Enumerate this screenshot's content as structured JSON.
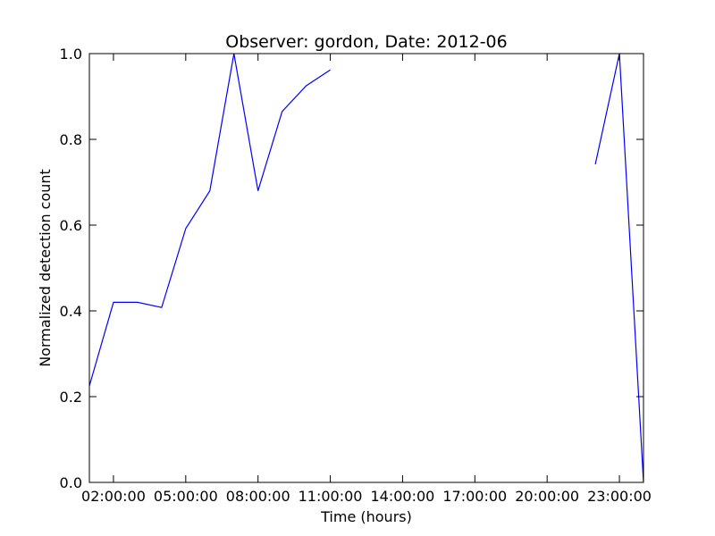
{
  "chart_data": {
    "type": "line",
    "title": "Observer: gordon, Date: 2012-06",
    "xlabel": "Time (hours)",
    "ylabel": "Normalized detection count",
    "xlim": [
      1,
      24
    ],
    "ylim": [
      0,
      1
    ],
    "grid": false,
    "legend": "none",
    "line_color": "#0000ff",
    "x_ticks": [
      {
        "value": 2,
        "label": "02:00:00"
      },
      {
        "value": 5,
        "label": "05:00:00"
      },
      {
        "value": 8,
        "label": "08:00:00"
      },
      {
        "value": 11,
        "label": "11:00:00"
      },
      {
        "value": 14,
        "label": "14:00:00"
      },
      {
        "value": 17,
        "label": "17:00:00"
      },
      {
        "value": 20,
        "label": "20:00:00"
      },
      {
        "value": 23,
        "label": "23:00:00"
      }
    ],
    "y_ticks": [
      {
        "value": 0.0,
        "label": "0.0"
      },
      {
        "value": 0.2,
        "label": "0.2"
      },
      {
        "value": 0.4,
        "label": "0.4"
      },
      {
        "value": 0.6,
        "label": "0.6"
      },
      {
        "value": 0.8,
        "label": "0.8"
      },
      {
        "value": 1.0,
        "label": "1.0"
      }
    ],
    "series": [
      {
        "segments": [
          [
            [
              1,
              0.225
            ],
            [
              2,
              0.42
            ],
            [
              3,
              0.42
            ],
            [
              4,
              0.408
            ],
            [
              5,
              0.592
            ],
            [
              6,
              0.68
            ],
            [
              7,
              1.0
            ],
            [
              8,
              0.68
            ],
            [
              9,
              0.865
            ],
            [
              10,
              0.925
            ],
            [
              11,
              0.962
            ]
          ],
          [
            [
              22,
              0.742
            ],
            [
              23,
              1.0
            ],
            [
              24,
              0.0
            ]
          ]
        ]
      }
    ]
  }
}
